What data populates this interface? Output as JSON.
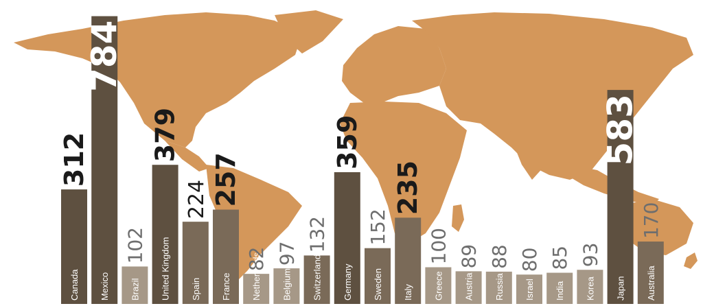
{
  "chart_data": {
    "type": "bar",
    "title": "",
    "xlabel": "",
    "ylabel": "",
    "categories": [
      "Canada",
      "Mexico",
      "Brazil",
      "United Kingdom",
      "Spain",
      "France",
      "Netherlands",
      "Belgium",
      "Switzerland",
      "Germany",
      "Sweden",
      "Italy",
      "Greece",
      "Austria",
      "Russia",
      "Israel",
      "India",
      "Korea",
      "Japan",
      "Australia"
    ],
    "values": [
      312,
      784,
      102,
      379,
      224,
      257,
      82,
      97,
      132,
      359,
      152,
      235,
      100,
      89,
      88,
      80,
      85,
      93,
      583,
      170
    ],
    "value_labels": [
      "312",
      "784",
      "102",
      "379",
      "224",
      "257",
      "82",
      "97",
      "132",
      "359",
      "152",
      "235",
      "100",
      "89",
      "88",
      "80",
      "85",
      "93",
      "583",
      "170"
    ],
    "ylim": [
      0,
      800
    ],
    "grid": false,
    "legend": "none",
    "background": "world-map",
    "colors": {
      "map_land": "#d4975a",
      "bar_dark": "#5e5040",
      "bar_mid": "#7a6a58",
      "bar_light": "#a69887",
      "value_dark": "#1a1a1a",
      "value_light": "#6e6e6e",
      "value_inside": "#ffffff"
    }
  }
}
